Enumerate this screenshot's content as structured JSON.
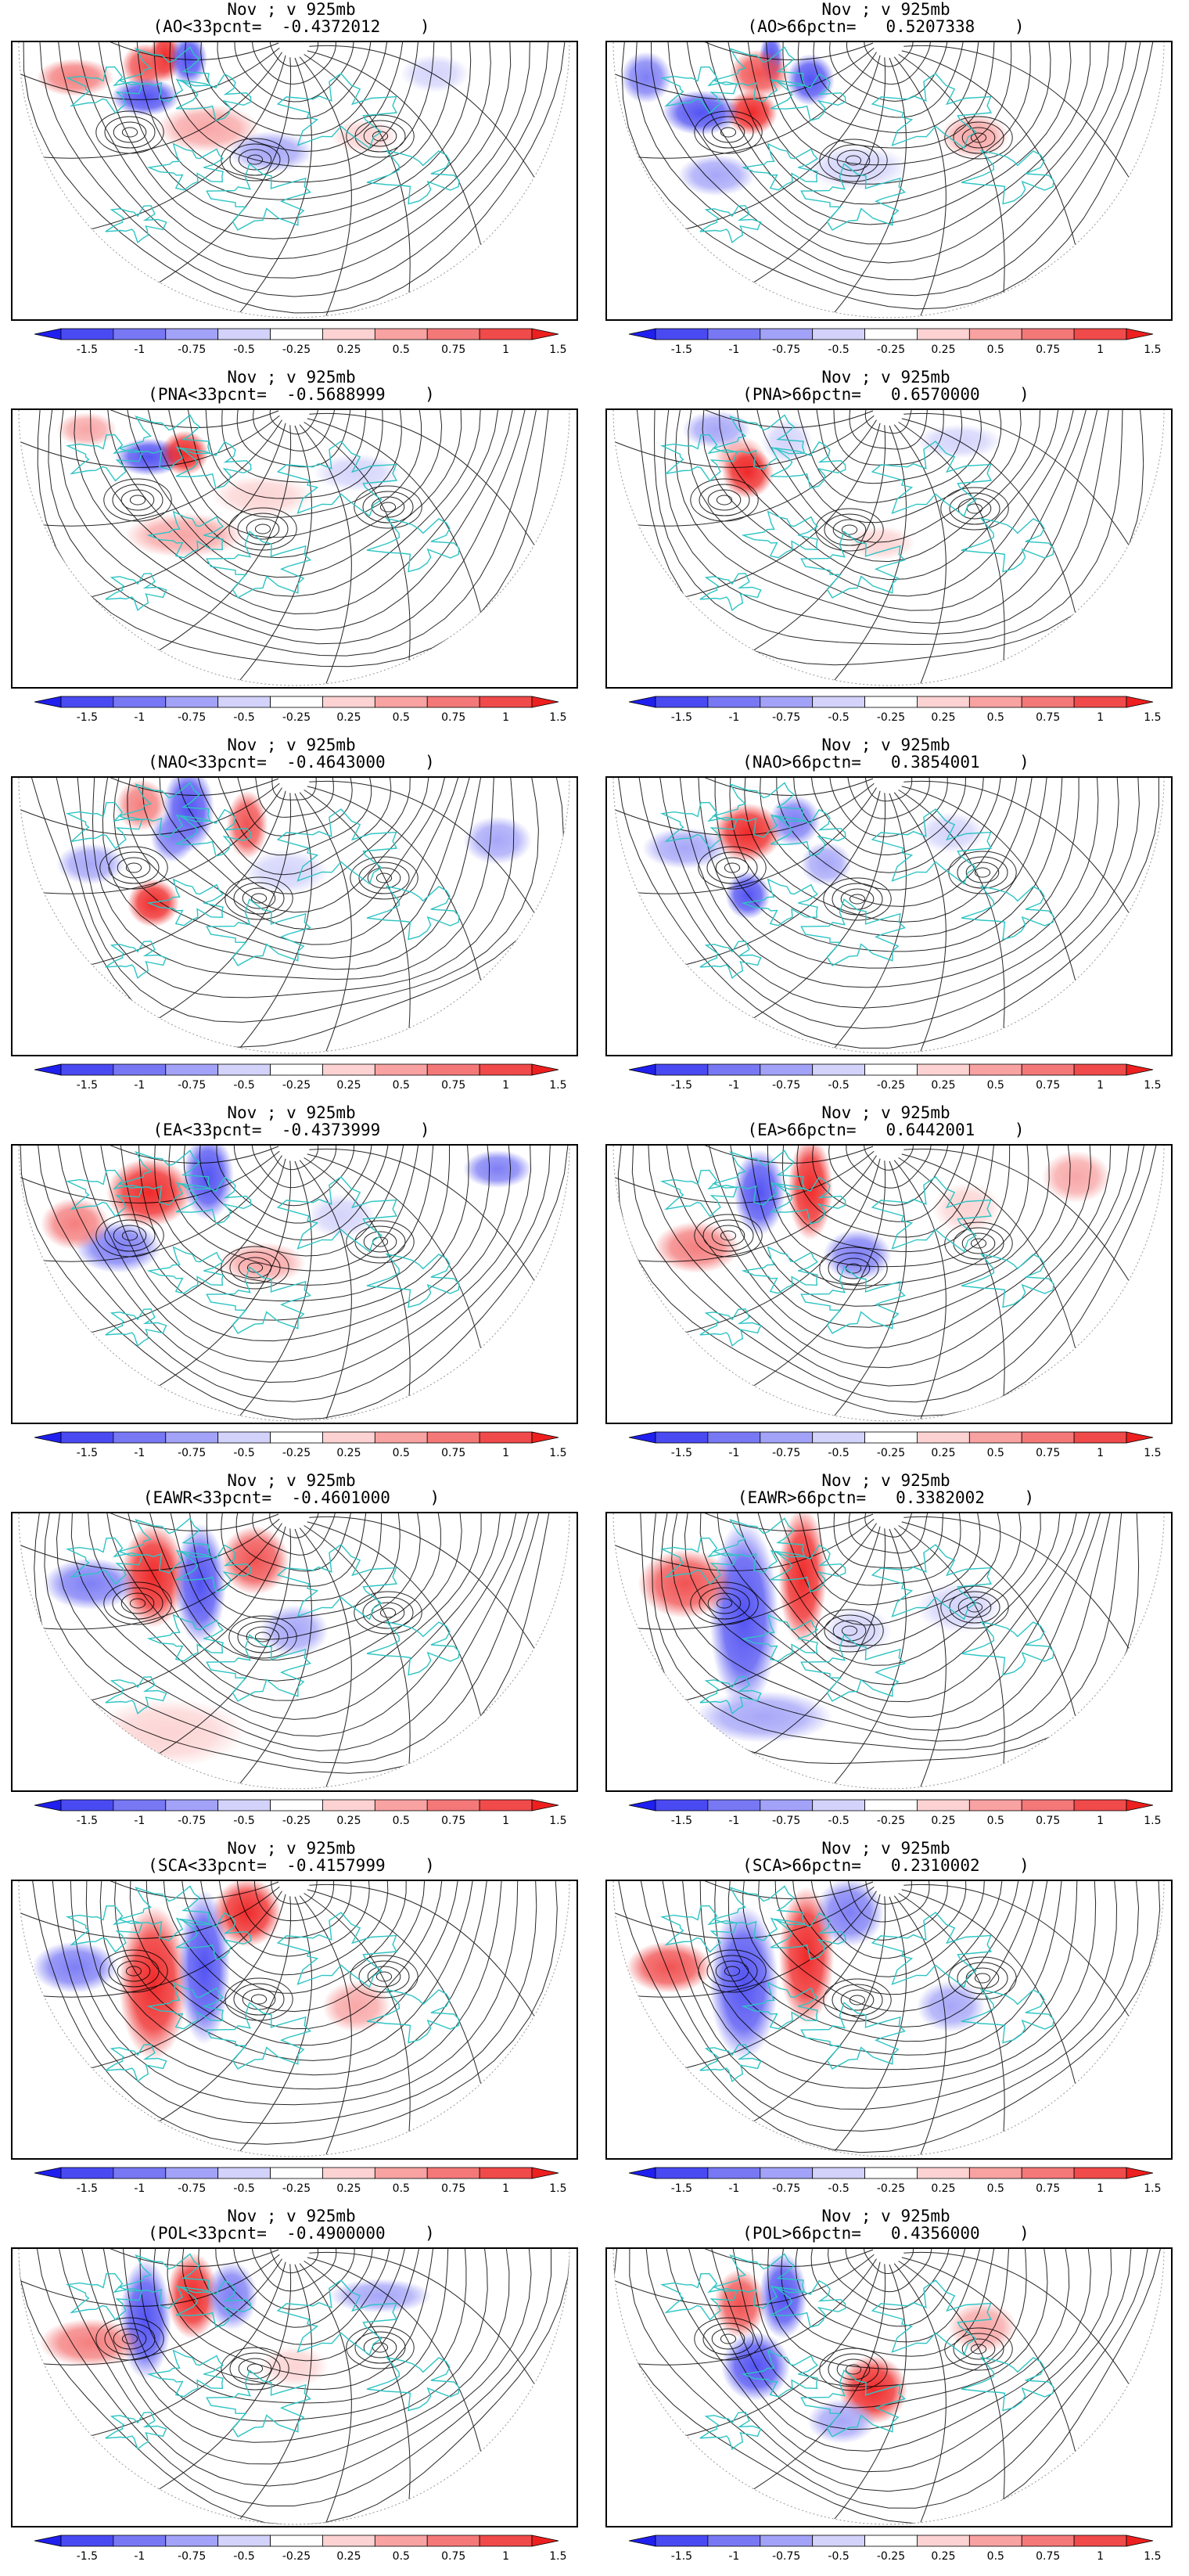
{
  "colorbar": {
    "ticks": [
      "-1.5",
      "-1",
      "-0.75",
      "-0.5",
      "-0.25",
      "0.25",
      "0.5",
      "0.75",
      "1",
      "1.5"
    ],
    "colors": [
      "#1f1fef",
      "#4a4af2",
      "#7878f5",
      "#a2a2f8",
      "#d2d2fb",
      "#ffffff",
      "#fcd2d2",
      "#f8a2a2",
      "#f47878",
      "#f04a4a",
      "#ee1f1f"
    ]
  },
  "colors": {
    "coast": "#2ec4c4",
    "stream": "#000000",
    "frame": "#000000"
  },
  "panels": [
    {
      "title": "Nov ; v 925mb",
      "subtitle": "(AO<33pcnt=  -0.4372012    )"
    },
    {
      "title": "Nov ; v 925mb",
      "subtitle": "(AO>66pctn=   0.5207338    )"
    },
    {
      "title": "Nov ; v 925mb",
      "subtitle": "(PNA<33pcnt=  -0.5688999    )"
    },
    {
      "title": "Nov ; v 925mb",
      "subtitle": "(PNA>66pctn=   0.6570000    )"
    },
    {
      "title": "Nov ; v 925mb",
      "subtitle": "(NAO<33pcnt=  -0.4643000    )"
    },
    {
      "title": "Nov ; v 925mb",
      "subtitle": "(NAO>66pctn=   0.3854001    )"
    },
    {
      "title": "Nov ; v 925mb",
      "subtitle": "(EA<33pcnt=  -0.4373999    )"
    },
    {
      "title": "Nov ; v 925mb",
      "subtitle": "(EA>66pctn=   0.6442001    )"
    },
    {
      "title": "Nov ; v 925mb",
      "subtitle": "(EAWR<33pcnt=  -0.4601000    )"
    },
    {
      "title": "Nov ; v 925mb",
      "subtitle": "(EAWR>66pctn=   0.3382002    )"
    },
    {
      "title": "Nov ; v 925mb",
      "subtitle": "(SCA<33pcnt=  -0.4157999    )"
    },
    {
      "title": "Nov ; v 925mb",
      "subtitle": "(SCA>66pctn=   0.2310002    )"
    },
    {
      "title": "Nov ; v 925mb",
      "subtitle": "(POL<33pcnt=  -0.4900000    )"
    },
    {
      "title": "Nov ; v 925mb",
      "subtitle": "(POL>66pctn=   0.4356000    )"
    }
  ]
}
